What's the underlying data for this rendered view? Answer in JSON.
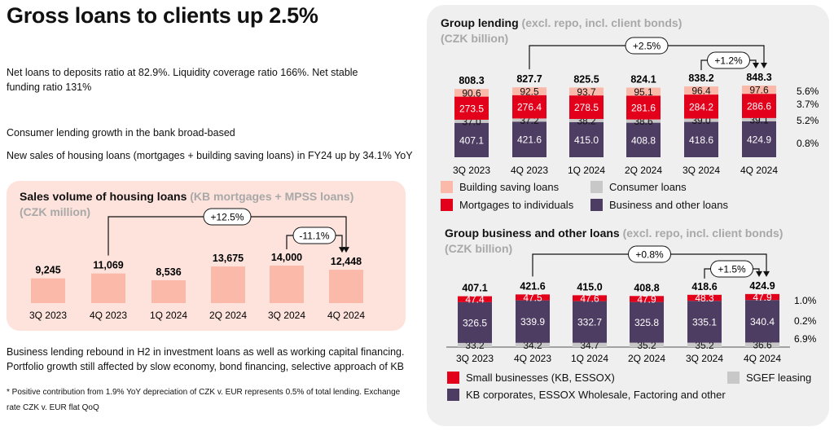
{
  "title": "Gross loans to clients up 2.5%",
  "paragraphs": {
    "ratios": "Net loans to deposits ratio at 82.9%. Liquidity coverage ratio 166%. Net stable funding ratio 131%",
    "consumer": "Consumer lending growth in the bank broad-based",
    "housing_sales": "New sales of housing loans (mortgages + building saving loans) in FY24 up by 34.1% YoY",
    "business": "Business lending rebound in H2 in investment loans as well as working capital financing. Portfolio growth still affected by slow economy, bond financing, selective approach of KB"
  },
  "footnote": "* Positive contribution from 1.9% YoY depreciation of CZK v. EUR represents 0.5% of total lending. Exchange rate CZK v. EUR flat QoQ",
  "chart_data": [
    {
      "type": "bar",
      "title": "Sales volume of housing loans",
      "subtitle": "(KB mortgages + MPSS loans)",
      "unit": "(CZK million)",
      "categories": [
        "3Q 2023",
        "4Q 2023",
        "1Q 2024",
        "2Q 2024",
        "3Q 2024",
        "4Q 2024"
      ],
      "values": [
        9245,
        11069,
        8536,
        13675,
        14000,
        12448
      ],
      "value_labels": [
        "9,245",
        "11,069",
        "8,536",
        "13,675",
        "14,000",
        "12,448"
      ],
      "annotations": [
        {
          "label": "+12.5%",
          "from": "4Q 2023",
          "to": "4Q 2024"
        },
        {
          "label": "-11.1%",
          "from": "3Q 2024",
          "to": "4Q 2024"
        }
      ],
      "colors": {
        "bar": "#fbb9aa"
      }
    },
    {
      "type": "bar",
      "stacked": true,
      "title": "Group lending",
      "subtitle": "(excl. repo, incl. client bonds)",
      "unit": "(CZK billion)",
      "categories": [
        "3Q 2023",
        "4Q 2023",
        "1Q 2024",
        "2Q 2024",
        "3Q 2024",
        "4Q 2024"
      ],
      "totals": [
        "808.3",
        "827.7",
        "825.5",
        "824.1",
        "838.2",
        "848.3"
      ],
      "series": [
        {
          "name": "Business and other loans",
          "values": [
            407.1,
            421.6,
            415.0,
            408.8,
            418.6,
            424.9
          ],
          "labels": [
            "407.1",
            "421.6",
            "415.0",
            "408.8",
            "418.6",
            "424.9"
          ],
          "color": "#4e3d63"
        },
        {
          "name": "Consumer loans",
          "values": [
            37.0,
            37.2,
            38.2,
            38.6,
            39.0,
            39.1
          ],
          "labels": [
            "37.0",
            "37.2",
            "38.2",
            "38.6",
            "39.0",
            "39.1"
          ],
          "color": "#c8c8c8"
        },
        {
          "name": "Mortgages to individuals",
          "values": [
            273.5,
            276.4,
            278.5,
            281.6,
            284.2,
            286.6
          ],
          "labels": [
            "273.5",
            "276.4",
            "278.5",
            "281.6",
            "284.2",
            "286.6"
          ],
          "color": "#e2001a"
        },
        {
          "name": "Building saving loans",
          "values": [
            90.6,
            92.5,
            93.7,
            95.1,
            96.4,
            97.6
          ],
          "labels": [
            "90.6",
            "92.5",
            "93.7",
            "95.1",
            "96.4",
            "97.6"
          ],
          "color": "#fbb9aa"
        }
      ],
      "growth_labels": [
        "0.8%",
        "5.2%",
        "3.7%",
        "5.6%"
      ],
      "annotations": [
        {
          "label": "+2.5%",
          "from": "4Q 2023",
          "to": "4Q 2024"
        },
        {
          "label": "+1.2%",
          "from": "3Q 2024",
          "to": "4Q 2024"
        }
      ],
      "legend": [
        "Building saving loans",
        "Consumer loans",
        "Mortgages to individuals",
        "Business and other loans"
      ]
    },
    {
      "type": "bar",
      "stacked": true,
      "title": "Group business and other loans",
      "subtitle": "(excl. repo, incl. client bonds)",
      "unit": "(CZK billion)",
      "categories": [
        "3Q 2023",
        "4Q 2023",
        "1Q 2024",
        "2Q 2024",
        "3Q 2024",
        "4Q 2024"
      ],
      "totals": [
        "407.1",
        "421.6",
        "415.0",
        "408.8",
        "418.6",
        "424.9"
      ],
      "series": [
        {
          "name": "SGEF leasing",
          "values": [
            33.2,
            34.2,
            34.7,
            35.2,
            35.2,
            36.6
          ],
          "labels": [
            "33.2",
            "34.2",
            "34.7",
            "35.2",
            "35.2",
            "36.6"
          ],
          "color": "#c8c8c8"
        },
        {
          "name": "KB corporates, ESSOX Wholesale, Factoring and other",
          "values": [
            326.5,
            339.9,
            332.7,
            325.8,
            335.1,
            340.4
          ],
          "labels": [
            "326.5",
            "339.9",
            "332.7",
            "325.8",
            "335.1",
            "340.4"
          ],
          "color": "#4e3d63"
        },
        {
          "name": "Small businesses (KB, ESSOX)",
          "values": [
            47.4,
            47.5,
            47.6,
            47.9,
            48.3,
            47.9
          ],
          "labels": [
            "47.4",
            "47.5",
            "47.6",
            "47.9",
            "48.3",
            "47.9"
          ],
          "color": "#e2001a"
        }
      ],
      "growth_labels": [
        "6.9%",
        "0.2%",
        "1.0%"
      ],
      "annotations": [
        {
          "label": "+0.8%",
          "from": "4Q 2023",
          "to": "4Q 2024"
        },
        {
          "label": "+1.5%",
          "from": "3Q 2024",
          "to": "4Q 2024"
        }
      ],
      "legend": [
        "Small businesses (KB, ESSOX)",
        "SGEF leasing",
        "KB corporates, ESSOX Wholesale, Factoring and other"
      ]
    }
  ]
}
